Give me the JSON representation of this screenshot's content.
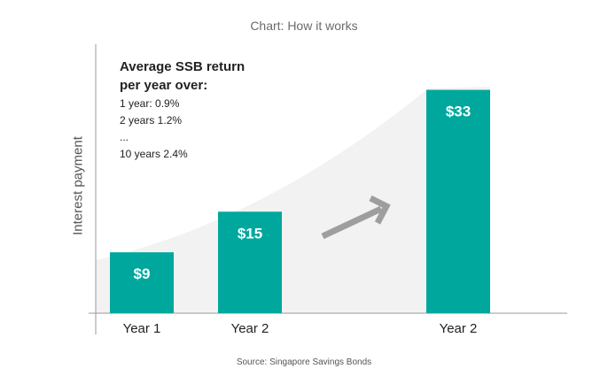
{
  "chart_title": "Chart: How it works",
  "annotation": {
    "heading_line1": "Average SSB return",
    "heading_line2": "per year over:",
    "lines": [
      "1 year: 0.9%",
      "2 years 1.2%",
      "...",
      "10 years 2.4%"
    ]
  },
  "source": "Source: Singapore Savings Bonds",
  "colors": {
    "bar": "#00A79D",
    "bar_label": "#ffffff",
    "curve_fill": "#F2F2F2",
    "arrow": "#9E9E9E",
    "axis": "#9A9A9A"
  },
  "chart_data": {
    "type": "bar",
    "title": "Chart: How it works",
    "xlabel": "",
    "ylabel": "Interest payment",
    "categories": [
      "Year 1",
      "Year 2",
      "Year 2"
    ],
    "values": [
      9,
      15,
      33
    ],
    "data_labels": [
      "$9",
      "$15",
      "$33"
    ],
    "ylim": [
      0,
      40
    ],
    "grid": false,
    "legend": "none",
    "trend_arrow": "upward"
  }
}
